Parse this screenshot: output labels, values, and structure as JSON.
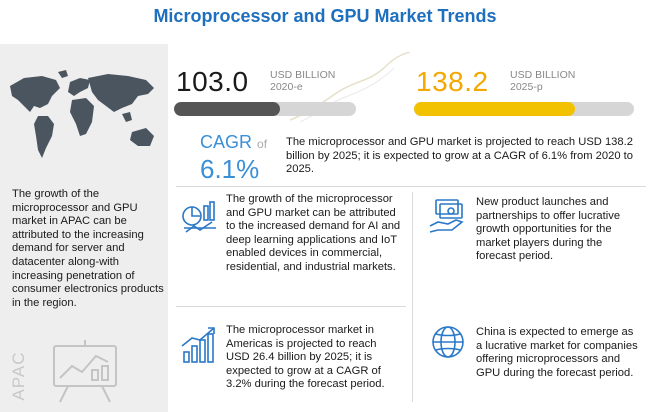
{
  "title": "Microprocessor and GPU Market Trends",
  "apac": {
    "text": "The growth of the microprocessor and GPU market in APAC can be attributed to the increasing demand for server and datacenter along-with increasing penetration of consumer electronics products in the region.",
    "label": "APAC",
    "icons": [
      "world-map-icon",
      "chart-board-icon"
    ]
  },
  "market": {
    "value_2020": "103.0",
    "unit_2020": "USD BILLION",
    "year_2020": "2020-e",
    "value_2025": "138.2",
    "unit_2025": "USD BILLION",
    "year_2025": "2025-p"
  },
  "cagr": {
    "label": "CAGR",
    "of": "of",
    "value": "6.1%",
    "text": "The microprocessor and GPU market is projected to reach USD 138.2 billion by 2025; it is expected to grow at a CAGR of 6.1% from 2020 to 2025."
  },
  "bullets": {
    "top_left": "The growth of the microprocessor and GPU market can be attributed to the increased demand for AI and deep learning applications and IoT enabled devices in commercial, residential, and industrial markets.",
    "top_right": "New product launches and partnerships to offer lucrative growth opportunities for the market players during the forecast period.",
    "bottom_left": "The microprocessor market in Americas is projected to reach USD 26.4 billion by 2025; it is expected to grow at a CAGR of 3.2% during the forecast period.",
    "bottom_right": "China is expected to emerge as a lucrative market for companies offering microprocessors and GPU during the forecast period."
  },
  "colors": {
    "title": "#1f6fbf",
    "bar_2020": "#555555",
    "bar_2025": "#f2c200",
    "bar_track": "#d6d6d6",
    "cagr": "#3b8fd6",
    "icon": "#2a78c8"
  },
  "chart_data": {
    "type": "bar",
    "categories": [
      "2020-e",
      "2025-p"
    ],
    "values": [
      103.0,
      138.2
    ],
    "ylabel": "USD BILLION"
  }
}
